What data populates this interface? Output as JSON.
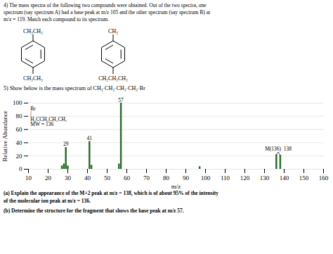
{
  "header": "4) The mass spectra of the following two compounds were obtained. Out of the two spectra, one\nspectrum (say spectrum A) had a base peak at m/z 105 and the other spectrum (say spectrum B) at\nm/z = 119. Match each compound to its spectrum.",
  "compounds": [
    {
      "top": "CH₂CH₃",
      "bottom": "CH₂CH₃"
    },
    {
      "top": "CH₃",
      "bottom": "CH₂CH₂CH₃"
    }
  ],
  "chart_data": {
    "type": "bar",
    "title": "5) Show below is the mass spectrum of CH₃·CH₂·CH₂·CH₂·Br",
    "x": [
      27,
      28,
      29,
      30,
      41,
      42,
      56,
      57,
      97,
      136,
      138
    ],
    "values": [
      5,
      8,
      33,
      5,
      42,
      6,
      8,
      100,
      4,
      22,
      21
    ],
    "color": "#2d6e2d",
    "xlabel": "m/z",
    "ylabel": "Relative Abundance",
    "xlim": [
      10,
      160
    ],
    "ylim": [
      0,
      100
    ],
    "xticks": [
      10,
      20,
      30,
      40,
      50,
      60,
      70,
      80,
      90,
      100,
      110,
      120,
      130,
      140,
      150,
      160
    ],
    "yticks": [
      0,
      20,
      40,
      60,
      80,
      100
    ],
    "grid": true,
    "annotations": [
      {
        "text": "Br\n|\nH₃CCH₂CH₂CH₂\nMW = 136",
        "x": 11,
        "y": 95
      },
      {
        "text": "29",
        "x": 29
      },
      {
        "text": "41",
        "x": 41
      },
      {
        "text": "57",
        "x": 57
      },
      {
        "text": "M(136)  138",
        "x": 137,
        "y": 26,
        "points": [
          136,
          138
        ]
      }
    ]
  },
  "footer": [
    "(a) Explain the appearance of the M+2 peak at m/z = 138, which is of about 95% of the intensity\nof the molecular ion peak at m/z = 136.",
    "(b) Determine the structure for the fragment that shows the base peak at m/z 57."
  ]
}
